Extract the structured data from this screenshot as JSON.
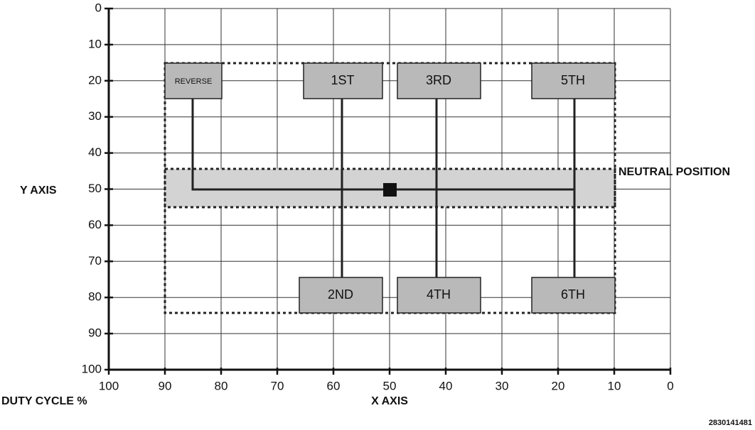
{
  "y_axis": {
    "title": "Y AXIS",
    "ticks": [
      0,
      10,
      20,
      30,
      40,
      50,
      60,
      70,
      80,
      90,
      100
    ]
  },
  "x_axis": {
    "title": "X AXIS",
    "ticks": [
      100,
      90,
      80,
      70,
      60,
      50,
      40,
      30,
      20,
      10,
      0
    ]
  },
  "duty_cycle_label": "DUTY CYCLE %",
  "neutral_label": "NEUTRAL POSITION",
  "gears": [
    "REVERSE",
    "1ST",
    "3RD",
    "5TH",
    "2ND",
    "4TH",
    "6TH"
  ],
  "figure_id": "2830141481"
}
